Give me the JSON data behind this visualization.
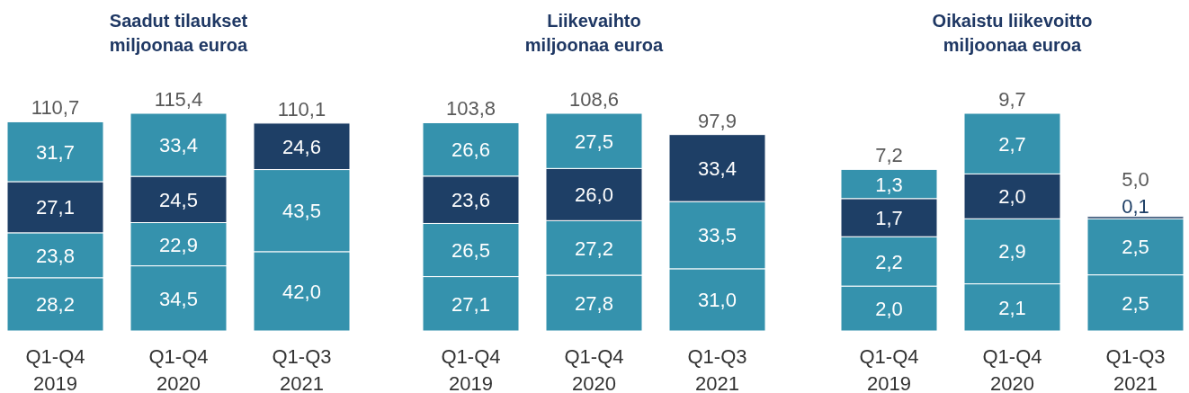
{
  "chart_data": [
    {
      "type": "bar",
      "stacked": true,
      "title": "Saadut tilaukset",
      "subtitle": "miljoonaa euroa",
      "categories": [
        "Q1-Q4\n2019",
        "Q1-Q4\n2020",
        "Q1-Q3\n2021"
      ],
      "totals": [
        "110,7",
        "115,4",
        "110,1"
      ],
      "series": [
        {
          "values": [
            28.2,
            34.5,
            42.0
          ],
          "colors": [
            "#3592ad",
            "#3592ad",
            "#3592ad"
          ],
          "value_labels": [
            "28,2",
            "34,5",
            "42,0"
          ]
        },
        {
          "values": [
            23.8,
            22.9,
            43.5
          ],
          "colors": [
            "#3592ad",
            "#3592ad",
            "#3592ad"
          ],
          "value_labels": [
            "23,8",
            "22,9",
            "43,5"
          ]
        },
        {
          "values": [
            27.1,
            24.5,
            24.6
          ],
          "colors": [
            "#1e3f66",
            "#1e3f66",
            "#1e3f66"
          ],
          "value_labels": [
            "27,1",
            "24,5",
            "24,6"
          ]
        },
        {
          "values": [
            31.7,
            33.4,
            null
          ],
          "colors": [
            "#3592ad",
            "#3592ad",
            null
          ],
          "value_labels": [
            "31,7",
            "33,4",
            null
          ]
        }
      ]
    },
    {
      "type": "bar",
      "stacked": true,
      "title": "Liikevaihto",
      "subtitle": "miljoonaa euroa",
      "categories": [
        "Q1-Q4\n2019",
        "Q1-Q4\n2020",
        "Q1-Q3\n2021"
      ],
      "totals": [
        "103,8",
        "108,6",
        "97,9"
      ],
      "series": [
        {
          "values": [
            27.1,
            27.8,
            31.0
          ],
          "colors": [
            "#3592ad",
            "#3592ad",
            "#3592ad"
          ],
          "value_labels": [
            "27,1",
            "27,8",
            "31,0"
          ]
        },
        {
          "values": [
            26.5,
            27.2,
            33.5
          ],
          "colors": [
            "#3592ad",
            "#3592ad",
            "#3592ad"
          ],
          "value_labels": [
            "26,5",
            "27,2",
            "33,5"
          ]
        },
        {
          "values": [
            23.6,
            26.0,
            33.4
          ],
          "colors": [
            "#1e3f66",
            "#1e3f66",
            "#1e3f66"
          ],
          "value_labels": [
            "23,6",
            "26,0",
            "33,4"
          ]
        },
        {
          "values": [
            26.6,
            27.5,
            null
          ],
          "colors": [
            "#3592ad",
            "#3592ad",
            null
          ],
          "value_labels": [
            "26,6",
            "27,5",
            null
          ]
        }
      ]
    },
    {
      "type": "bar",
      "stacked": true,
      "title": "Oikaistu liikevoitto",
      "subtitle": "miljoonaa euroa",
      "categories": [
        "Q1-Q4\n2019",
        "Q1-Q4\n2020",
        "Q1-Q3\n2021"
      ],
      "totals": [
        "7,2",
        "9,7",
        "5,0"
      ],
      "series": [
        {
          "values": [
            2.0,
            2.1,
            2.5
          ],
          "colors": [
            "#3592ad",
            "#3592ad",
            "#3592ad"
          ],
          "value_labels": [
            "2,0",
            "2,1",
            "2,5"
          ]
        },
        {
          "values": [
            2.2,
            2.9,
            2.5
          ],
          "colors": [
            "#3592ad",
            "#3592ad",
            "#3592ad"
          ],
          "value_labels": [
            "2,2",
            "2,9",
            "2,5"
          ]
        },
        {
          "values": [
            1.7,
            2.0,
            0.1
          ],
          "colors": [
            "#1e3f66",
            "#1e3f66",
            "#1e3f66"
          ],
          "value_labels": [
            "1,7",
            "2,0",
            "0,1"
          ]
        },
        {
          "values": [
            1.3,
            2.7,
            null
          ],
          "colors": [
            "#3592ad",
            "#3592ad",
            null
          ],
          "value_labels": [
            "1,3",
            "2,7",
            null
          ]
        }
      ]
    }
  ]
}
